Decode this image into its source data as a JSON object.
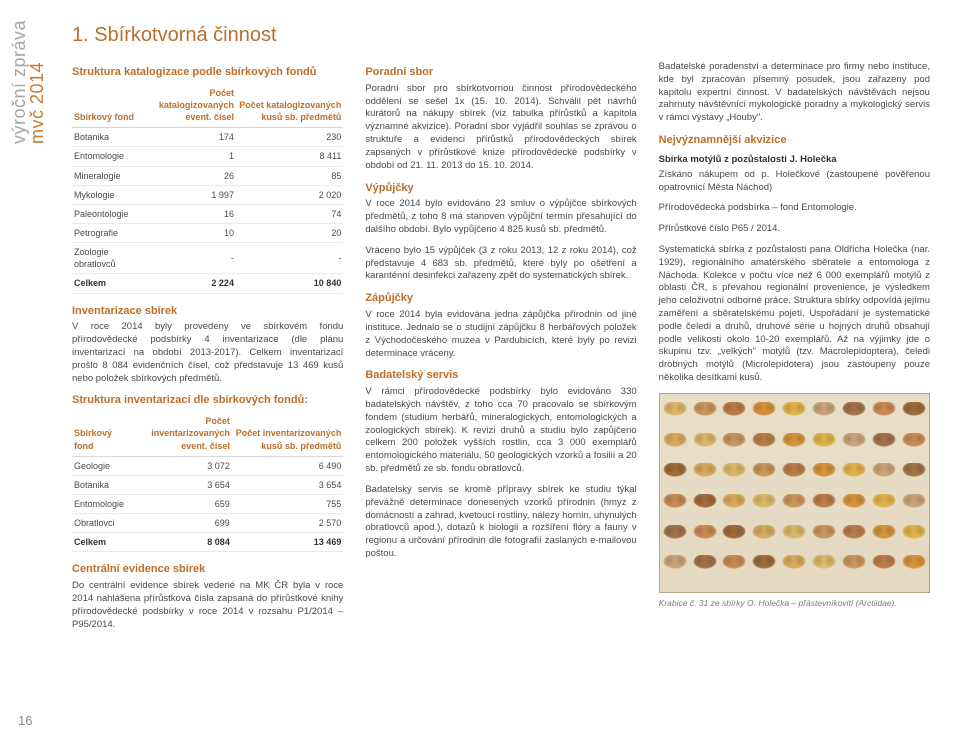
{
  "side_label": {
    "line1": "výroční zpráva",
    "line2": "mvč 2014"
  },
  "title": "1. Sbírkotvorná činnost",
  "table1": {
    "heading": "Struktura katalogizace podle sbírkových fondů",
    "cols": [
      "Sbírkový fond",
      "Počet katalogizovaných event. čísel",
      "Počet katalogizovaných kusů sb. předmětů"
    ],
    "rows": [
      [
        "Botanika",
        "174",
        "230"
      ],
      [
        "Entomologie",
        "1",
        "8 411"
      ],
      [
        "Mineralogie",
        "26",
        "85"
      ],
      [
        "Mykologie",
        "1 997",
        "2 020"
      ],
      [
        "Paleontologie",
        "16",
        "74"
      ],
      [
        "Petrografie",
        "10",
        "20"
      ],
      [
        "Zoologie obratlovců",
        "-",
        "-"
      ]
    ],
    "total": [
      "Celkem",
      "2 224",
      "10 840"
    ]
  },
  "inv_heading": "Inventarizace sbírek",
  "inv_text": "V roce 2014 byly provedeny ve sbírkovém fondu přírodovědecké podsbírky 4 inventarizace (dle plánu inventarizací na období 2013-2017). Celkem inventarizací prošlo 8 084 evidenčních čísel, což představuje 13 469 kusů nebo položek sbírkových předmětů.",
  "table2": {
    "heading": "Struktura inventarizací dle sbírkových fondů:",
    "cols": [
      "Sbírkový fond",
      "Počet inventarizovaných event. čísel",
      "Počet inventarizovaných kusů sb. předmětů"
    ],
    "rows": [
      [
        "Geologie",
        "3 072",
        "6 490"
      ],
      [
        "Botanika",
        "3 654",
        "3 654"
      ],
      [
        "Entomologie",
        "659",
        "755"
      ],
      [
        "Obratlovci",
        "699",
        "2 570"
      ]
    ],
    "total": [
      "Celkem",
      "8 084",
      "13 469"
    ]
  },
  "central_heading": "Centrální evidence sbírek",
  "central_text": "Do centrální evidence sbírek vedené na MK ČR byla v roce 2014 nahlášena přírůstková čísla zapsaná do přírůstkové knihy přírodovědecké podsbírky v roce 2014 v rozsahu P1/2014 – P95/2014.",
  "col2": {
    "h1": "Poradní sbor",
    "p1": "Poradní sbor pro sbírkotvornou činnost přírodovědeckého oddělení se sešel 1x (15. 10. 2014). Schválil pět návrhů kurátorů na nákupy sbírek (viz tabulka přírůstků a kapitola významné akvizice). Poradní sbor vyjádřil souhlas se zprávou o struktuře a evidenci přírůstků přírodovědeckých sbírek zapsaných v přírůstkové knize přírodovědecké podsbírky v období od 21. 11. 2013 do 15. 10. 2014.",
    "h2": "Výpůjčky",
    "p2": "V roce 2014 bylo evidováno 23 smluv o výpůjčce sbírkových předmětů, z toho 8 má stanoven výpůjční termín přesahující do dalšího období. Bylo vypůjčeno 4 825 kusů sb. předmětů.",
    "p3": "Vráceno bylo 15 výpůjček (3 z roku 2013, 12 z roku 2014), což představuje 4 683 sb. předmětů, které byly po ošetření a karanténní desinfekci zařazeny zpět do systematických sbírek.",
    "h3": "Zápůjčky",
    "p4": "V roce 2014 byla evidována jedna zápůjčka přírodnin od jiné instituce. Jednalo se o studijní zápůjčku 8 herbářových položek z Východočeského muzea v Pardubicích, které byly po revizi determinace vráceny.",
    "h4": "Badatelský servis",
    "p5": "V rámci přírodovědecké podsbírky bylo evidováno 330 badatelských návštěv, z toho cca 70 pracovalo se sbírkovým fondem (studium herbářů, mineralogických, entomologických a zoologických sbírek). K revizi druhů a studiu bylo zapůjčeno celkem 200 položek vyšších rostlin, cca 3 000 exemplářů entomologického materiálu, 50 geologických vzorků a fosilií a 20 sb. předmětů ze sb. fondu obratlovců.",
    "p6": "Badatelský servis se kromě přípravy sbírek ke studiu týkal převážně determinace donesených vzorků přírodnin (hmyz z domácností a zahrad, kvetoucí rostliny, nálezy hornin, uhynulých obratlovců apod.), dotazů k biologii a rozšíření flóry a fauny v regionu a určování přírodnin dle fotografií zaslaných e-mailovou poštou."
  },
  "col3": {
    "p1": "Badatelské poradenství a determinace pro firmy nebo instituce, kde byl zpracován písemný posudek, jsou zařazeny pod kapitolu expertní činnost. V badatelských návštěvách nejsou zahrnuty návštěvníci mykologické poradny a mykologický servis v rámci výstavy „Houby\".",
    "h1": "Nejvýznamnější akvizice",
    "b1": "Sbírka motýlů z pozůstalosti J. Holečka",
    "p2": "Získáno nákupem od p. Holečkové (zastoupené pověřenou opatrovnicí Města Náchod)",
    "p3": "Přírodovědecká podsbírka – fond Entomologie.",
    "p4": "Přírůstkové číslo P65 / 2014.",
    "p5": "Systematická sbírka z pozůstalosti pana Oldřicha Holečka (nar. 1929), regionálního amatérského sběratele a entomologa z Náchoda. Kolekce v počtu více než 6 000 exemplářů motýlů z oblasti ČR, s převahou regionální provenience, je výsledkem jeho celoživotní odborné práce. Struktura sbírky odpovídá jejímu zaměření a sběratelskému pojetí. Uspořádání je systematické podle čeledí a druhů, druhové série u hojných druhů obsahují podle velikosti okolo 10-20 exemplářů. Až na výjimky jde o skupinu tzv. „velkých\" motýlů (tzv. Macrolepidoptera), čeledi drobných motýlů (Microlepidotera) jsou zastoupeny pouze několika desítkami kusů.",
    "caption": "Krabice č. 31 ze sbírky O. Holečka – přástevníkovití (Arctiidae)."
  },
  "moth_colors": [
    "#d9b76a",
    "#c9955a",
    "#b97c48",
    "#d4923d",
    "#e0b24a",
    "#caa37a",
    "#a17249",
    "#c88a55",
    "#9f6a3c",
    "#d7a95e"
  ],
  "page_number": "16"
}
